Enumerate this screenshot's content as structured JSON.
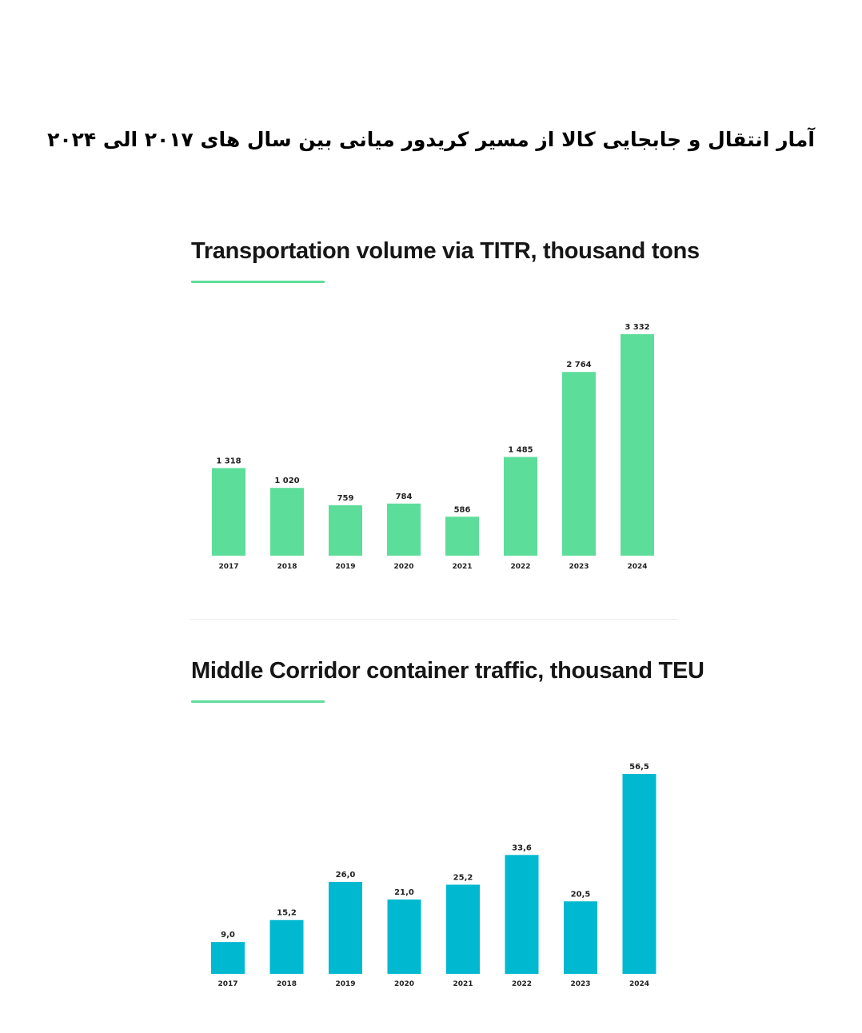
{
  "page": {
    "title": "آمار انتقال و جابجایی کالا از مسیر کریدور میانی بین سال های ۲۰۱۷ الی ۲۰۲۴"
  },
  "chart_data": [
    {
      "type": "bar",
      "title": "Transportation volume via TITR, thousand tons",
      "categories": [
        "2017",
        "2018",
        "2019",
        "2020",
        "2021",
        "2022",
        "2023",
        "2024"
      ],
      "values": [
        1318,
        1020,
        759,
        784,
        586,
        1485,
        2764,
        3332
      ],
      "value_labels": [
        "1 318",
        "1 020",
        "759",
        "784",
        "586",
        "1 485",
        "2 764",
        "3 332"
      ],
      "bar_color": "#5ddd9a",
      "accent_color": "#5ddd9a",
      "xlabel": "",
      "ylabel": "",
      "ylim": [
        0,
        3332
      ],
      "grid": false,
      "legend": false
    },
    {
      "type": "bar",
      "title": "Middle Corridor container traffic, thousand TEU",
      "categories": [
        "2017",
        "2018",
        "2019",
        "2020",
        "2021",
        "2022",
        "2023",
        "2024"
      ],
      "values": [
        9.0,
        15.2,
        26.0,
        21.0,
        25.2,
        33.6,
        20.5,
        56.5
      ],
      "value_labels": [
        "9,0",
        "15,2",
        "26,0",
        "21,0",
        "25,2",
        "33,6",
        "20,5",
        "56,5"
      ],
      "bar_color": "#00b8cf",
      "accent_color": "#5ddd9a",
      "xlabel": "",
      "ylabel": "",
      "ylim": [
        0,
        56.5
      ],
      "grid": false,
      "legend": false
    }
  ]
}
